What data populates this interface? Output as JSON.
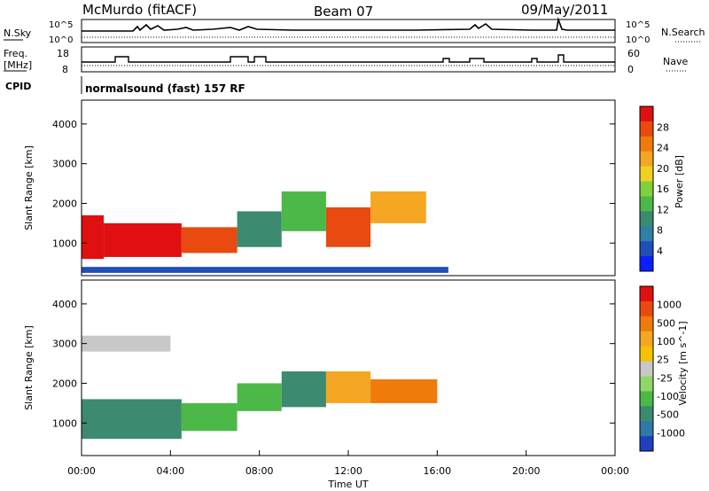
{
  "header": {
    "station": "McMurdo (fitACF)",
    "beam": "Beam 07",
    "date": "09/May/2011"
  },
  "noise_panel": {
    "left_label": "N.Sky",
    "right_label": "N.Search",
    "left_ticks": [
      "10^5",
      "10^0"
    ],
    "right_ticks": [
      "10^5",
      "10^0"
    ]
  },
  "freq_panel": {
    "left_label_line1": "Freq.",
    "left_label_line2": "[MHz]",
    "left_ticks": [
      "18",
      "8"
    ],
    "right_label": "Nave",
    "right_ticks": [
      "60",
      "0"
    ]
  },
  "cpid": {
    "label": "CPID",
    "value": "normalsound (fast) 157 RF"
  },
  "chart_data": [
    {
      "type": "heatmap",
      "name": "power-panel",
      "ylabel": "Slant Range [km]",
      "xlabel": "",
      "ylim": [
        180,
        4600
      ],
      "yticks": [
        "1000",
        "2000",
        "3000",
        "4000"
      ],
      "ytick_values": [
        1000,
        2000,
        3000,
        4000
      ],
      "colorbar": {
        "label": "Power [dB]",
        "ticks": [
          "4",
          "8",
          "12",
          "16",
          "20",
          "24",
          "28"
        ],
        "colors": [
          "#0a1fff",
          "#1f4fb8",
          "#2f7fa8",
          "#3c8a70",
          "#4cb848",
          "#7fd23c",
          "#f0d020",
          "#f5a623",
          "#f07a0c",
          "#e84a10",
          "#e01010"
        ]
      },
      "bands": [
        {
          "t0": 0.0,
          "t1": 1.0,
          "r0": 600,
          "r1": 1700,
          "color": "#e01010"
        },
        {
          "t0": 1.0,
          "t1": 4.5,
          "r0": 650,
          "r1": 1500,
          "color": "#e01010"
        },
        {
          "t0": 4.5,
          "t1": 7.0,
          "r0": 750,
          "r1": 1400,
          "color": "#e84a10"
        },
        {
          "t0": 7.0,
          "t1": 9.0,
          "r0": 900,
          "r1": 1800,
          "color": "#3c8a70"
        },
        {
          "t0": 9.0,
          "t1": 11.0,
          "r0": 1300,
          "r1": 2300,
          "color": "#4cb848"
        },
        {
          "t0": 11.0,
          "t1": 13.0,
          "r0": 900,
          "r1": 1900,
          "color": "#e84a10"
        },
        {
          "t0": 13.0,
          "t1": 15.5,
          "r0": 1500,
          "r1": 2300,
          "color": "#f5a623"
        },
        {
          "t0": 0.0,
          "t1": 16.5,
          "r0": 250,
          "r1": 400,
          "color": "#1f4fb8"
        }
      ]
    },
    {
      "type": "heatmap",
      "name": "velocity-panel",
      "ylabel": "Slant Range [km]",
      "xlabel": "Time UT",
      "ylim": [
        180,
        4600
      ],
      "yticks": [
        "1000",
        "2000",
        "3000",
        "4000"
      ],
      "ytick_values": [
        1000,
        2000,
        3000,
        4000
      ],
      "xticks": [
        "00:00",
        "04:00",
        "08:00",
        "12:00",
        "16:00",
        "20:00",
        "00:00"
      ],
      "xtick_hours": [
        0,
        4,
        8,
        12,
        16,
        20,
        24
      ],
      "colorbar": {
        "label": "Velocity [m s^-1]",
        "ticks": [
          "1000",
          "500",
          "100",
          "25",
          "-25",
          "-100",
          "-500",
          "-1000"
        ],
        "colors": [
          "#1f3fc0",
          "#2f78a8",
          "#3c8a70",
          "#4cb848",
          "#8fd868",
          "#c8c8c8",
          "#f5c200",
          "#f5a623",
          "#f07a0c",
          "#e84a10",
          "#e01010"
        ]
      },
      "bands": [
        {
          "t0": 0.0,
          "t1": 4.5,
          "r0": 600,
          "r1": 1600,
          "color": "#3c8a70"
        },
        {
          "t0": 4.5,
          "t1": 7.0,
          "r0": 800,
          "r1": 1500,
          "color": "#4cb848"
        },
        {
          "t0": 7.0,
          "t1": 9.0,
          "r0": 1300,
          "r1": 2000,
          "color": "#4cb848"
        },
        {
          "t0": 9.0,
          "t1": 11.0,
          "r0": 1400,
          "r1": 2300,
          "color": "#3c8a70"
        },
        {
          "t0": 11.0,
          "t1": 13.0,
          "r0": 1500,
          "r1": 2300,
          "color": "#f5a623"
        },
        {
          "t0": 13.0,
          "t1": 16.0,
          "r0": 1500,
          "r1": 2100,
          "color": "#f07a0c"
        },
        {
          "t0": 0.0,
          "t1": 4.0,
          "r0": 2800,
          "r1": 3200,
          "color": "#c8c8c8"
        }
      ]
    }
  ]
}
